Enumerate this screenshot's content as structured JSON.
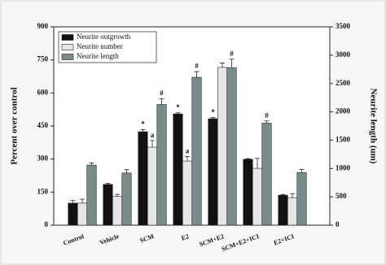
{
  "chart_data": {
    "type": "bar",
    "y_label": "Percent over control",
    "y2_label": "Neurite length (um)",
    "categories": [
      "Control",
      "Vehicle",
      "SCM",
      "E2",
      "SCM+E2",
      "SCM+E2+ICI",
      "E2+ICI"
    ],
    "ylim": [
      0,
      900
    ],
    "yticks": [
      0,
      150,
      300,
      450,
      600,
      750,
      900
    ],
    "y2lim": [
      0,
      3500
    ],
    "y2ticks": [
      0,
      500,
      1000,
      1500,
      2000,
      2500,
      3000,
      3500
    ],
    "legend": "upper left",
    "series": [
      {
        "name": "Neurite outgrowth",
        "color": "#111111",
        "axis": "y",
        "values": [
          100,
          185,
          424,
          505,
          483,
          299,
          136
        ],
        "errors": [
          12,
          5,
          10,
          5,
          5,
          3,
          3
        ],
        "annotations": [
          null,
          null,
          "*",
          "*",
          "*",
          null,
          null
        ]
      },
      {
        "name": "Neurite number",
        "color": "#e6e6e6",
        "axis": "y",
        "values": [
          100,
          130,
          354,
          291,
          716,
          258,
          125
        ],
        "errors": [
          18,
          10,
          30,
          20,
          20,
          45,
          18
        ],
        "annotations": [
          null,
          null,
          "a",
          "a",
          null,
          null,
          null
        ]
      },
      {
        "name": "Neurite length",
        "color": "#7a8b8b",
        "axis": "y2",
        "values": [
          1060,
          920,
          2130,
          2610,
          2780,
          1800,
          930
        ],
        "errors": [
          40,
          60,
          100,
          100,
          150,
          40,
          55
        ],
        "annotations": [
          null,
          null,
          "#",
          "#",
          "#",
          "#",
          null
        ]
      }
    ]
  }
}
